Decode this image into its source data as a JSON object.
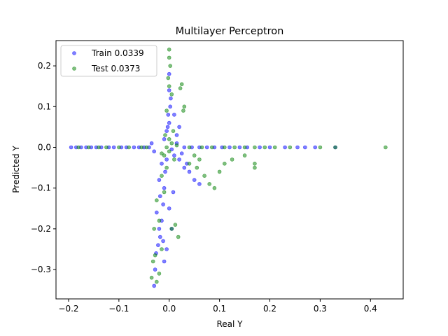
{
  "chart_data": {
    "type": "scatter",
    "title": "Multilayer Perceptron",
    "xlabel": "Real Y",
    "ylabel": "Predicted Y",
    "xlim": [
      -0.225,
      0.465
    ],
    "ylim": [
      -0.372,
      0.262
    ],
    "xticks": [
      -0.2,
      -0.1,
      0.0,
      0.1,
      0.2,
      0.3,
      0.4
    ],
    "xtick_labels": [
      "−0.2",
      "−0.1",
      "0.0",
      "0.1",
      "0.2",
      "0.3",
      "0.4"
    ],
    "yticks": [
      0.2,
      0.1,
      0.0,
      -0.1,
      -0.2,
      -0.3
    ],
    "ytick_labels": [
      "0.2",
      "0.1",
      "0.0",
      "−0.1",
      "−0.2",
      "−0.3"
    ],
    "grid": false,
    "legend_position": "top-left",
    "series": [
      {
        "name": "Train 0.0339",
        "color": "#0000ff",
        "points": [
          [
            -0.195,
            0.0
          ],
          [
            -0.185,
            0.0
          ],
          [
            -0.175,
            0.0
          ],
          [
            -0.165,
            0.0
          ],
          [
            -0.155,
            0.0
          ],
          [
            -0.145,
            0.0
          ],
          [
            -0.135,
            0.0
          ],
          [
            -0.12,
            0.0
          ],
          [
            -0.11,
            0.0
          ],
          [
            -0.095,
            0.0
          ],
          [
            -0.085,
            0.0
          ],
          [
            -0.07,
            0.0
          ],
          [
            -0.06,
            0.0
          ],
          [
            -0.05,
            0.0
          ],
          [
            -0.04,
            0.0
          ],
          [
            0.03,
            0.0
          ],
          [
            0.045,
            0.0
          ],
          [
            0.06,
            0.0
          ],
          [
            0.075,
            0.0
          ],
          [
            0.09,
            0.0
          ],
          [
            0.105,
            0.0
          ],
          [
            0.12,
            0.0
          ],
          [
            0.14,
            0.0
          ],
          [
            0.155,
            0.0
          ],
          [
            0.18,
            0.0
          ],
          [
            0.2,
            0.0
          ],
          [
            0.23,
            0.0
          ],
          [
            0.255,
            0.0
          ],
          [
            0.27,
            0.0
          ],
          [
            0.29,
            0.0
          ],
          [
            0.33,
            0.0
          ],
          [
            -0.03,
            -0.34
          ],
          [
            -0.028,
            -0.3
          ],
          [
            -0.026,
            -0.26
          ],
          [
            -0.022,
            -0.24
          ],
          [
            -0.018,
            -0.22
          ],
          [
            -0.02,
            -0.2
          ],
          [
            -0.015,
            -0.18
          ],
          [
            -0.025,
            -0.16
          ],
          [
            -0.012,
            -0.14
          ],
          [
            -0.018,
            -0.12
          ],
          [
            -0.01,
            -0.1
          ],
          [
            -0.02,
            -0.08
          ],
          [
            -0.008,
            -0.06
          ],
          [
            -0.015,
            -0.04
          ],
          [
            -0.005,
            -0.03
          ],
          [
            -0.01,
            0.02
          ],
          [
            -0.005,
            0.04
          ],
          [
            0.0,
            0.06
          ],
          [
            -0.002,
            0.08
          ],
          [
            0.002,
            0.1
          ],
          [
            0.0,
            0.14
          ],
          [
            0.0,
            0.18
          ],
          [
            0.003,
            0.12
          ],
          [
            -0.003,
            0.05
          ],
          [
            0.01,
            -0.02
          ],
          [
            0.02,
            -0.03
          ],
          [
            0.03,
            -0.05
          ],
          [
            0.04,
            -0.06
          ],
          [
            0.05,
            -0.08
          ],
          [
            0.06,
            -0.09
          ],
          [
            0.035,
            -0.04
          ],
          [
            0.025,
            -0.015
          ],
          [
            0.015,
            0.03
          ],
          [
            0.02,
            0.05
          ],
          [
            0.01,
            0.08
          ],
          [
            -0.005,
            -0.25
          ],
          [
            -0.01,
            -0.28
          ],
          [
            -0.012,
            -0.23
          ],
          [
            0.005,
            -0.2
          ],
          [
            0.0,
            -0.15
          ],
          [
            0.008,
            -0.11
          ],
          [
            -0.03,
            -0.01
          ],
          [
            -0.035,
            0.01
          ],
          [
            0.015,
            0.01
          ],
          [
            0.005,
            -0.005
          ]
        ]
      },
      {
        "name": "Test 0.0373",
        "color": "#008000",
        "points": [
          [
            -0.18,
            0.0
          ],
          [
            -0.16,
            0.0
          ],
          [
            -0.14,
            0.0
          ],
          [
            -0.125,
            0.0
          ],
          [
            -0.1,
            0.0
          ],
          [
            -0.08,
            0.0
          ],
          [
            -0.055,
            0.0
          ],
          [
            -0.045,
            0.0
          ],
          [
            0.04,
            0.0
          ],
          [
            0.065,
            0.0
          ],
          [
            0.085,
            0.0
          ],
          [
            0.11,
            0.0
          ],
          [
            0.13,
            0.0
          ],
          [
            0.15,
            0.0
          ],
          [
            0.17,
            0.0
          ],
          [
            0.19,
            0.0
          ],
          [
            0.21,
            0.0
          ],
          [
            0.24,
            0.0
          ],
          [
            0.3,
            0.0
          ],
          [
            0.33,
            0.0
          ],
          [
            0.43,
            0.0
          ],
          [
            0.0,
            0.24
          ],
          [
            0.0,
            0.22
          ],
          [
            0.002,
            0.2
          ],
          [
            -0.002,
            0.17
          ],
          [
            0.0,
            0.15
          ],
          [
            0.005,
            0.13
          ],
          [
            0.025,
            0.155
          ],
          [
            0.022,
            0.145
          ],
          [
            0.03,
            0.1
          ],
          [
            0.028,
            0.09
          ],
          [
            -0.005,
            0.09
          ],
          [
            -0.035,
            -0.32
          ],
          [
            -0.025,
            -0.33
          ],
          [
            -0.02,
            -0.31
          ],
          [
            -0.032,
            -0.28
          ],
          [
            -0.028,
            -0.265
          ],
          [
            -0.015,
            -0.25
          ],
          [
            -0.03,
            -0.2
          ],
          [
            -0.02,
            -0.18
          ],
          [
            -0.025,
            -0.13
          ],
          [
            -0.01,
            -0.11
          ],
          [
            -0.015,
            -0.07
          ],
          [
            -0.005,
            -0.05
          ],
          [
            0.005,
            -0.2
          ],
          [
            0.018,
            -0.22
          ],
          [
            0.012,
            -0.19
          ],
          [
            0.04,
            -0.04
          ],
          [
            0.055,
            -0.05
          ],
          [
            0.07,
            -0.07
          ],
          [
            0.08,
            -0.09
          ],
          [
            0.09,
            -0.1
          ],
          [
            0.1,
            -0.06
          ],
          [
            0.11,
            -0.04
          ],
          [
            0.125,
            -0.03
          ],
          [
            0.15,
            -0.02
          ],
          [
            0.17,
            -0.04
          ],
          [
            0.17,
            -0.05
          ],
          [
            0.05,
            -0.02
          ],
          [
            0.06,
            -0.03
          ],
          [
            -0.005,
            0.0
          ],
          [
            0.0,
            -0.01
          ],
          [
            0.005,
            0.01
          ],
          [
            -0.01,
            -0.02
          ],
          [
            0.01,
            -0.03
          ],
          [
            -0.008,
            0.03
          ],
          [
            0.008,
            0.04
          ],
          [
            0.0,
            0.02
          ],
          [
            -0.015,
            -0.015
          ],
          [
            0.015,
            0.005
          ]
        ]
      }
    ]
  }
}
